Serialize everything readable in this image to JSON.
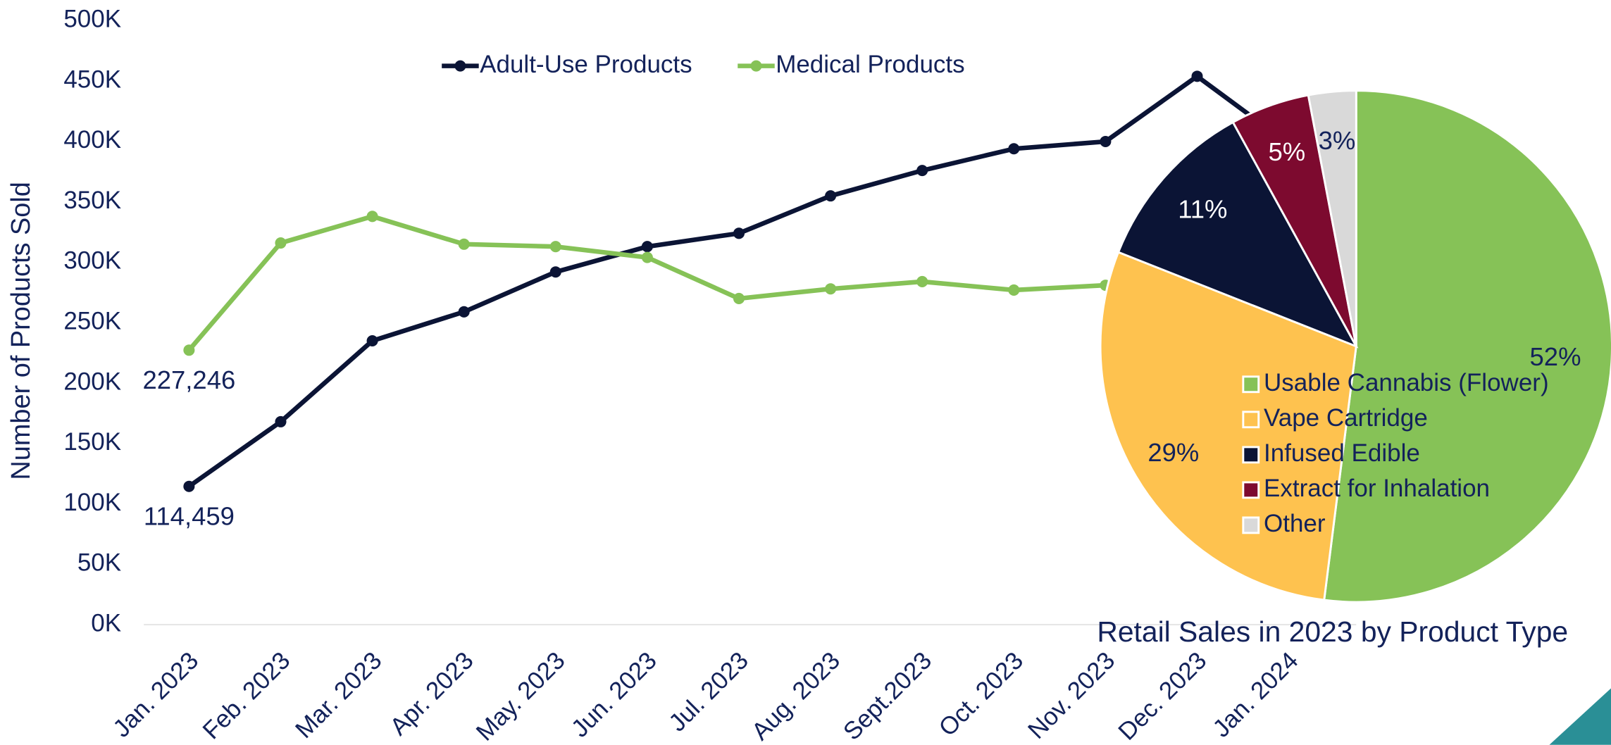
{
  "chart_data": [
    {
      "type": "line",
      "y_label": "Number of Products Sold",
      "categories": [
        "Jan. 2023",
        "Feb. 2023",
        "Mar. 2023",
        "Apr. 2023",
        "May. 2023",
        "Jun. 2023",
        "Jul. 2023",
        "Aug. 2023",
        "Sept.2023",
        "Oct. 2023",
        "Nov. 2023",
        "Dec. 2023",
        "Jan. 2024"
      ],
      "series": [
        {
          "name": "Adult-Use Products",
          "color": "#0b1435",
          "values": [
            114459,
            168000,
            235000,
            259000,
            292000,
            313000,
            324000,
            355000,
            376000,
            394000,
            400000,
            454000,
            398000
          ],
          "value_labels": [
            "114,459",
            null,
            null,
            null,
            null,
            null,
            null,
            null,
            null,
            null,
            null,
            null,
            null
          ]
        },
        {
          "name": "Medical Products",
          "color": "#86c257",
          "values": [
            227246,
            316000,
            338000,
            315000,
            313000,
            304000,
            270000,
            278000,
            284000,
            277000,
            281000,
            285000,
            280000
          ],
          "value_labels": [
            "227,246",
            null,
            null,
            null,
            null,
            null,
            null,
            null,
            null,
            null,
            null,
            null,
            null
          ]
        }
      ],
      "ylim": [
        0,
        500000
      ],
      "yticks": [
        {
          "value": 0,
          "label": "0K"
        },
        {
          "value": 50000,
          "label": "50K"
        },
        {
          "value": 100000,
          "label": "100K"
        },
        {
          "value": 150000,
          "label": "150K"
        },
        {
          "value": 200000,
          "label": "200K"
        },
        {
          "value": 250000,
          "label": "250K"
        },
        {
          "value": 300000,
          "label": "300K"
        },
        {
          "value": 350000,
          "label": "350K"
        },
        {
          "value": 400000,
          "label": "400K"
        },
        {
          "value": 450000,
          "label": "450K"
        },
        {
          "value": 500000,
          "label": "500K"
        }
      ],
      "grid": false,
      "legend": "top"
    },
    {
      "type": "pie",
      "title": "Retail Sales in 2023 by Product Type",
      "categories": [
        "Usable Cannabis (Flower)",
        "Vape Cartridge",
        "Infused Edible",
        "Extract for Inhalation",
        "Other"
      ],
      "values": [
        52,
        29,
        11,
        5,
        3
      ],
      "value_labels": [
        "52%",
        "29%",
        "11%",
        "5%",
        "3%"
      ],
      "colors": [
        "#86c257",
        "#fec24f",
        "#0b1435",
        "#7d0a2f",
        "#d9d9d9"
      ]
    }
  ]
}
